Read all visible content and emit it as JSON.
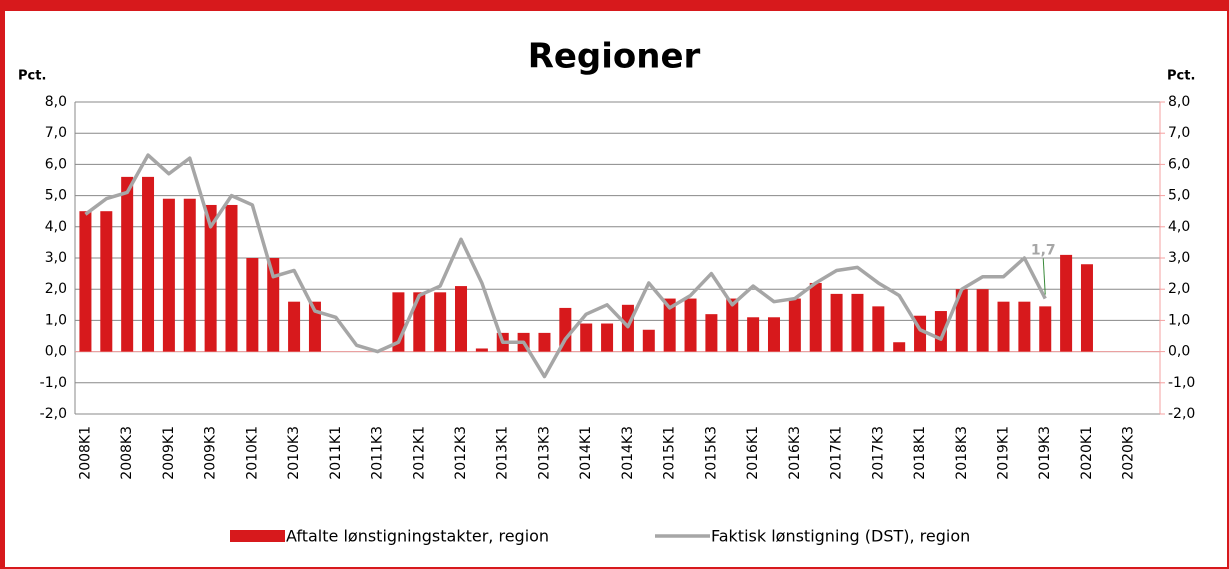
{
  "chart_data": {
    "type": "bar_line",
    "title": "Regioner",
    "y_label": "Pct.",
    "y2_label": "Pct.",
    "categories": [
      "2008K1",
      null,
      "2008K3",
      null,
      "2009K1",
      null,
      "2009K3",
      null,
      "2010K1",
      null,
      "2010K3",
      null,
      "2011K1",
      null,
      "2011K3",
      null,
      "2012K1",
      null,
      "2012K3",
      null,
      "2013K1",
      null,
      "2013K3",
      null,
      "2014K1",
      null,
      "2014K3",
      null,
      "2015K1",
      null,
      "2015K3",
      null,
      "2016K1",
      null,
      "2016K3",
      null,
      "2017K1",
      null,
      "2017K3",
      null,
      "2018K1",
      null,
      "2018K3",
      null,
      "2019K1",
      null,
      "2019K3",
      null,
      "2020K1",
      null,
      "2020K3",
      null
    ],
    "series": [
      {
        "name": "Aftalte lønstigningstakter, region",
        "type": "bar",
        "color": "#d7191c",
        "values": [
          4.5,
          4.5,
          5.6,
          5.6,
          4.9,
          4.9,
          4.7,
          4.7,
          3.0,
          3.0,
          1.6,
          1.6,
          null,
          null,
          null,
          1.9,
          1.9,
          1.9,
          2.1,
          0.1,
          0.6,
          0.6,
          0.6,
          1.4,
          0.9,
          0.9,
          1.5,
          0.7,
          1.7,
          1.7,
          1.2,
          1.7,
          1.1,
          1.1,
          1.7,
          2.2,
          1.85,
          1.85,
          1.45,
          0.3,
          1.15,
          1.3,
          2.0,
          2.0,
          1.6,
          1.6,
          1.45,
          3.1,
          2.8,
          null,
          null,
          null
        ]
      },
      {
        "name": "Faktisk lønstigning (DST), region",
        "type": "line",
        "color": "#a6a6a6",
        "values": [
          4.4,
          4.9,
          5.1,
          6.3,
          5.7,
          6.2,
          4.0,
          5.0,
          4.7,
          2.4,
          2.6,
          1.3,
          1.1,
          0.2,
          0.0,
          0.3,
          1.8,
          2.1,
          3.6,
          2.2,
          0.3,
          0.3,
          -0.8,
          0.4,
          1.2,
          1.5,
          0.8,
          2.2,
          1.4,
          1.8,
          2.5,
          1.5,
          2.1,
          1.6,
          1.7,
          2.2,
          2.6,
          2.7,
          2.2,
          1.8,
          0.7,
          0.4,
          2.0,
          2.4,
          2.4,
          3.0,
          1.7,
          null,
          null,
          null,
          null,
          null
        ],
        "value_labels": [
          null,
          null,
          null,
          null,
          null,
          null,
          null,
          null,
          null,
          null,
          null,
          null,
          null,
          null,
          null,
          null,
          null,
          null,
          null,
          null,
          null,
          null,
          null,
          null,
          null,
          null,
          null,
          null,
          null,
          null,
          null,
          null,
          null,
          null,
          null,
          null,
          null,
          null,
          null,
          null,
          null,
          null,
          null,
          null,
          null,
          null,
          "1,7",
          null,
          null,
          null,
          null,
          null
        ]
      }
    ],
    "ylim": [
      -2,
      8
    ],
    "yticks": [
      {
        "value": -2,
        "label": "-2,0"
      },
      {
        "value": -1,
        "label": "-1,0"
      },
      {
        "value": 0,
        "label": "0,0"
      },
      {
        "value": 1,
        "label": "1,0"
      },
      {
        "value": 2,
        "label": "2,0"
      },
      {
        "value": 3,
        "label": "3,0"
      },
      {
        "value": 4,
        "label": "4,0"
      },
      {
        "value": 5,
        "label": "5,0"
      },
      {
        "value": 6,
        "label": "6,0"
      },
      {
        "value": 7,
        "label": "7,0"
      },
      {
        "value": 8,
        "label": "8,0"
      }
    ],
    "y2lim": [
      -2,
      8
    ],
    "y2ticks": [
      {
        "value": -2,
        "label": "-2,0"
      },
      {
        "value": -1,
        "label": "-1,0"
      },
      {
        "value": 0,
        "label": "0,0"
      },
      {
        "value": 1,
        "label": "1,0"
      },
      {
        "value": 2,
        "label": "2,0"
      },
      {
        "value": 3,
        "label": "3,0"
      },
      {
        "value": 4,
        "label": "4,0"
      },
      {
        "value": 5,
        "label": "5,0"
      },
      {
        "value": 6,
        "label": "6,0"
      },
      {
        "value": 7,
        "label": "7,0"
      },
      {
        "value": 8,
        "label": "8,0"
      }
    ],
    "grid": true,
    "legend": "bottom"
  }
}
